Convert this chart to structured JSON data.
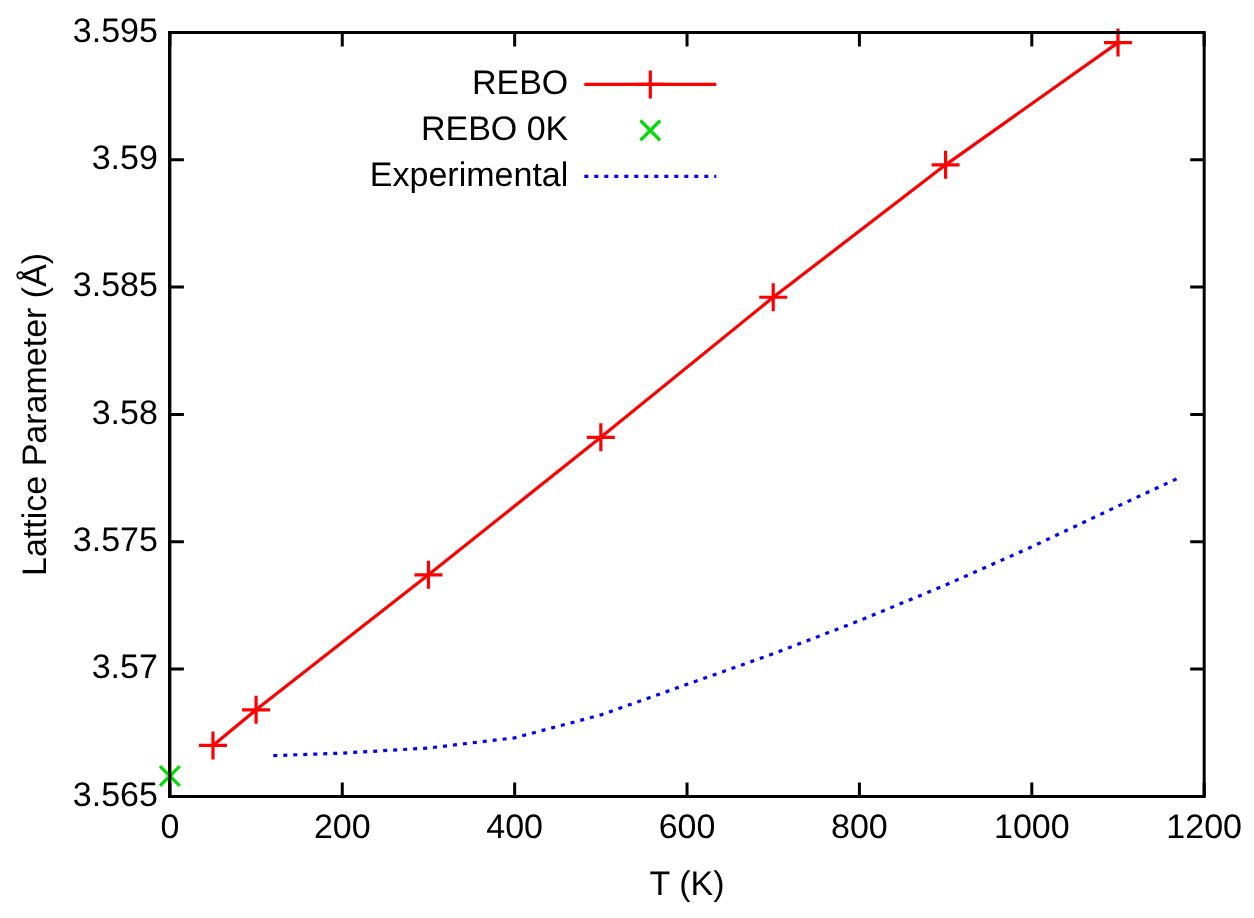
{
  "chart_data": {
    "type": "line",
    "xlabel": "T (K)",
    "ylabel": "Lattice Parameter (Å)",
    "xlim": [
      0,
      1200
    ],
    "xticks": [
      0,
      200,
      400,
      600,
      800,
      1000,
      1200
    ],
    "ylim": [
      3.565,
      3.595
    ],
    "yticks": [
      3.565,
      3.57,
      3.575,
      3.58,
      3.585,
      3.59,
      3.595
    ],
    "grid": false,
    "legend": "top left",
    "series": [
      {
        "name": "REBO",
        "color": "#ff0000",
        "marker": "cross",
        "line_style": "solid",
        "x": [
          50,
          100,
          300,
          500,
          700,
          900,
          1100
        ],
        "values": [
          3.567,
          3.5684,
          3.5737,
          3.5791,
          3.5846,
          3.5898,
          3.5946
        ]
      },
      {
        "name": "REBO 0K",
        "type": "scatter",
        "color": "#00dd00",
        "marker": "x",
        "x": [
          0
        ],
        "values": [
          3.5658
        ]
      },
      {
        "name": "Experimental",
        "color": "#0000ff",
        "marker": "none",
        "line_style": "dotted",
        "x": [
          120,
          200,
          300,
          400,
          500,
          600,
          700,
          800,
          900,
          1000,
          1100,
          1170
        ],
        "values": [
          3.5666,
          3.5667,
          3.5669,
          3.5673,
          3.5682,
          3.5694,
          3.5706,
          3.5719,
          3.5733,
          3.5748,
          3.5764,
          3.5775
        ]
      }
    ]
  }
}
